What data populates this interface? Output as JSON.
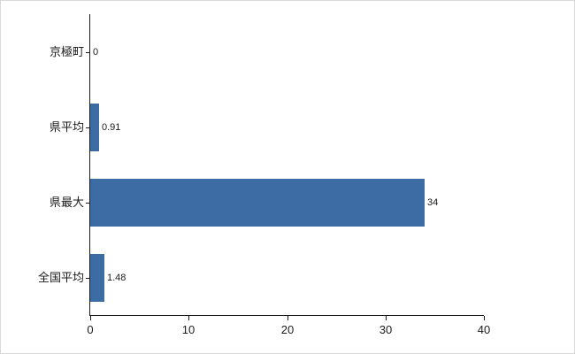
{
  "chart": {
    "title": "",
    "background": "#ffffff",
    "border_color": "#d9d9d9"
  },
  "chart_data": {
    "type": "bar",
    "orientation": "horizontal",
    "categories": [
      "京極町",
      "県平均",
      "県最大",
      "全国平均"
    ],
    "values": [
      0,
      0.91,
      34,
      1.48
    ],
    "value_labels": [
      "0",
      "0.91",
      "34",
      "1.48"
    ],
    "title": "",
    "xlabel": "",
    "ylabel": "",
    "xlim": [
      0,
      40
    ],
    "x_ticks": [
      0,
      10,
      20,
      30,
      40
    ],
    "x_tick_labels": [
      "0",
      "10",
      "20",
      "30",
      "40"
    ],
    "grid": false,
    "legend": "none",
    "bar_color": "#3d6ba3",
    "axis_color": "#1a1a1a",
    "label_color": "#1a1a1a"
  }
}
